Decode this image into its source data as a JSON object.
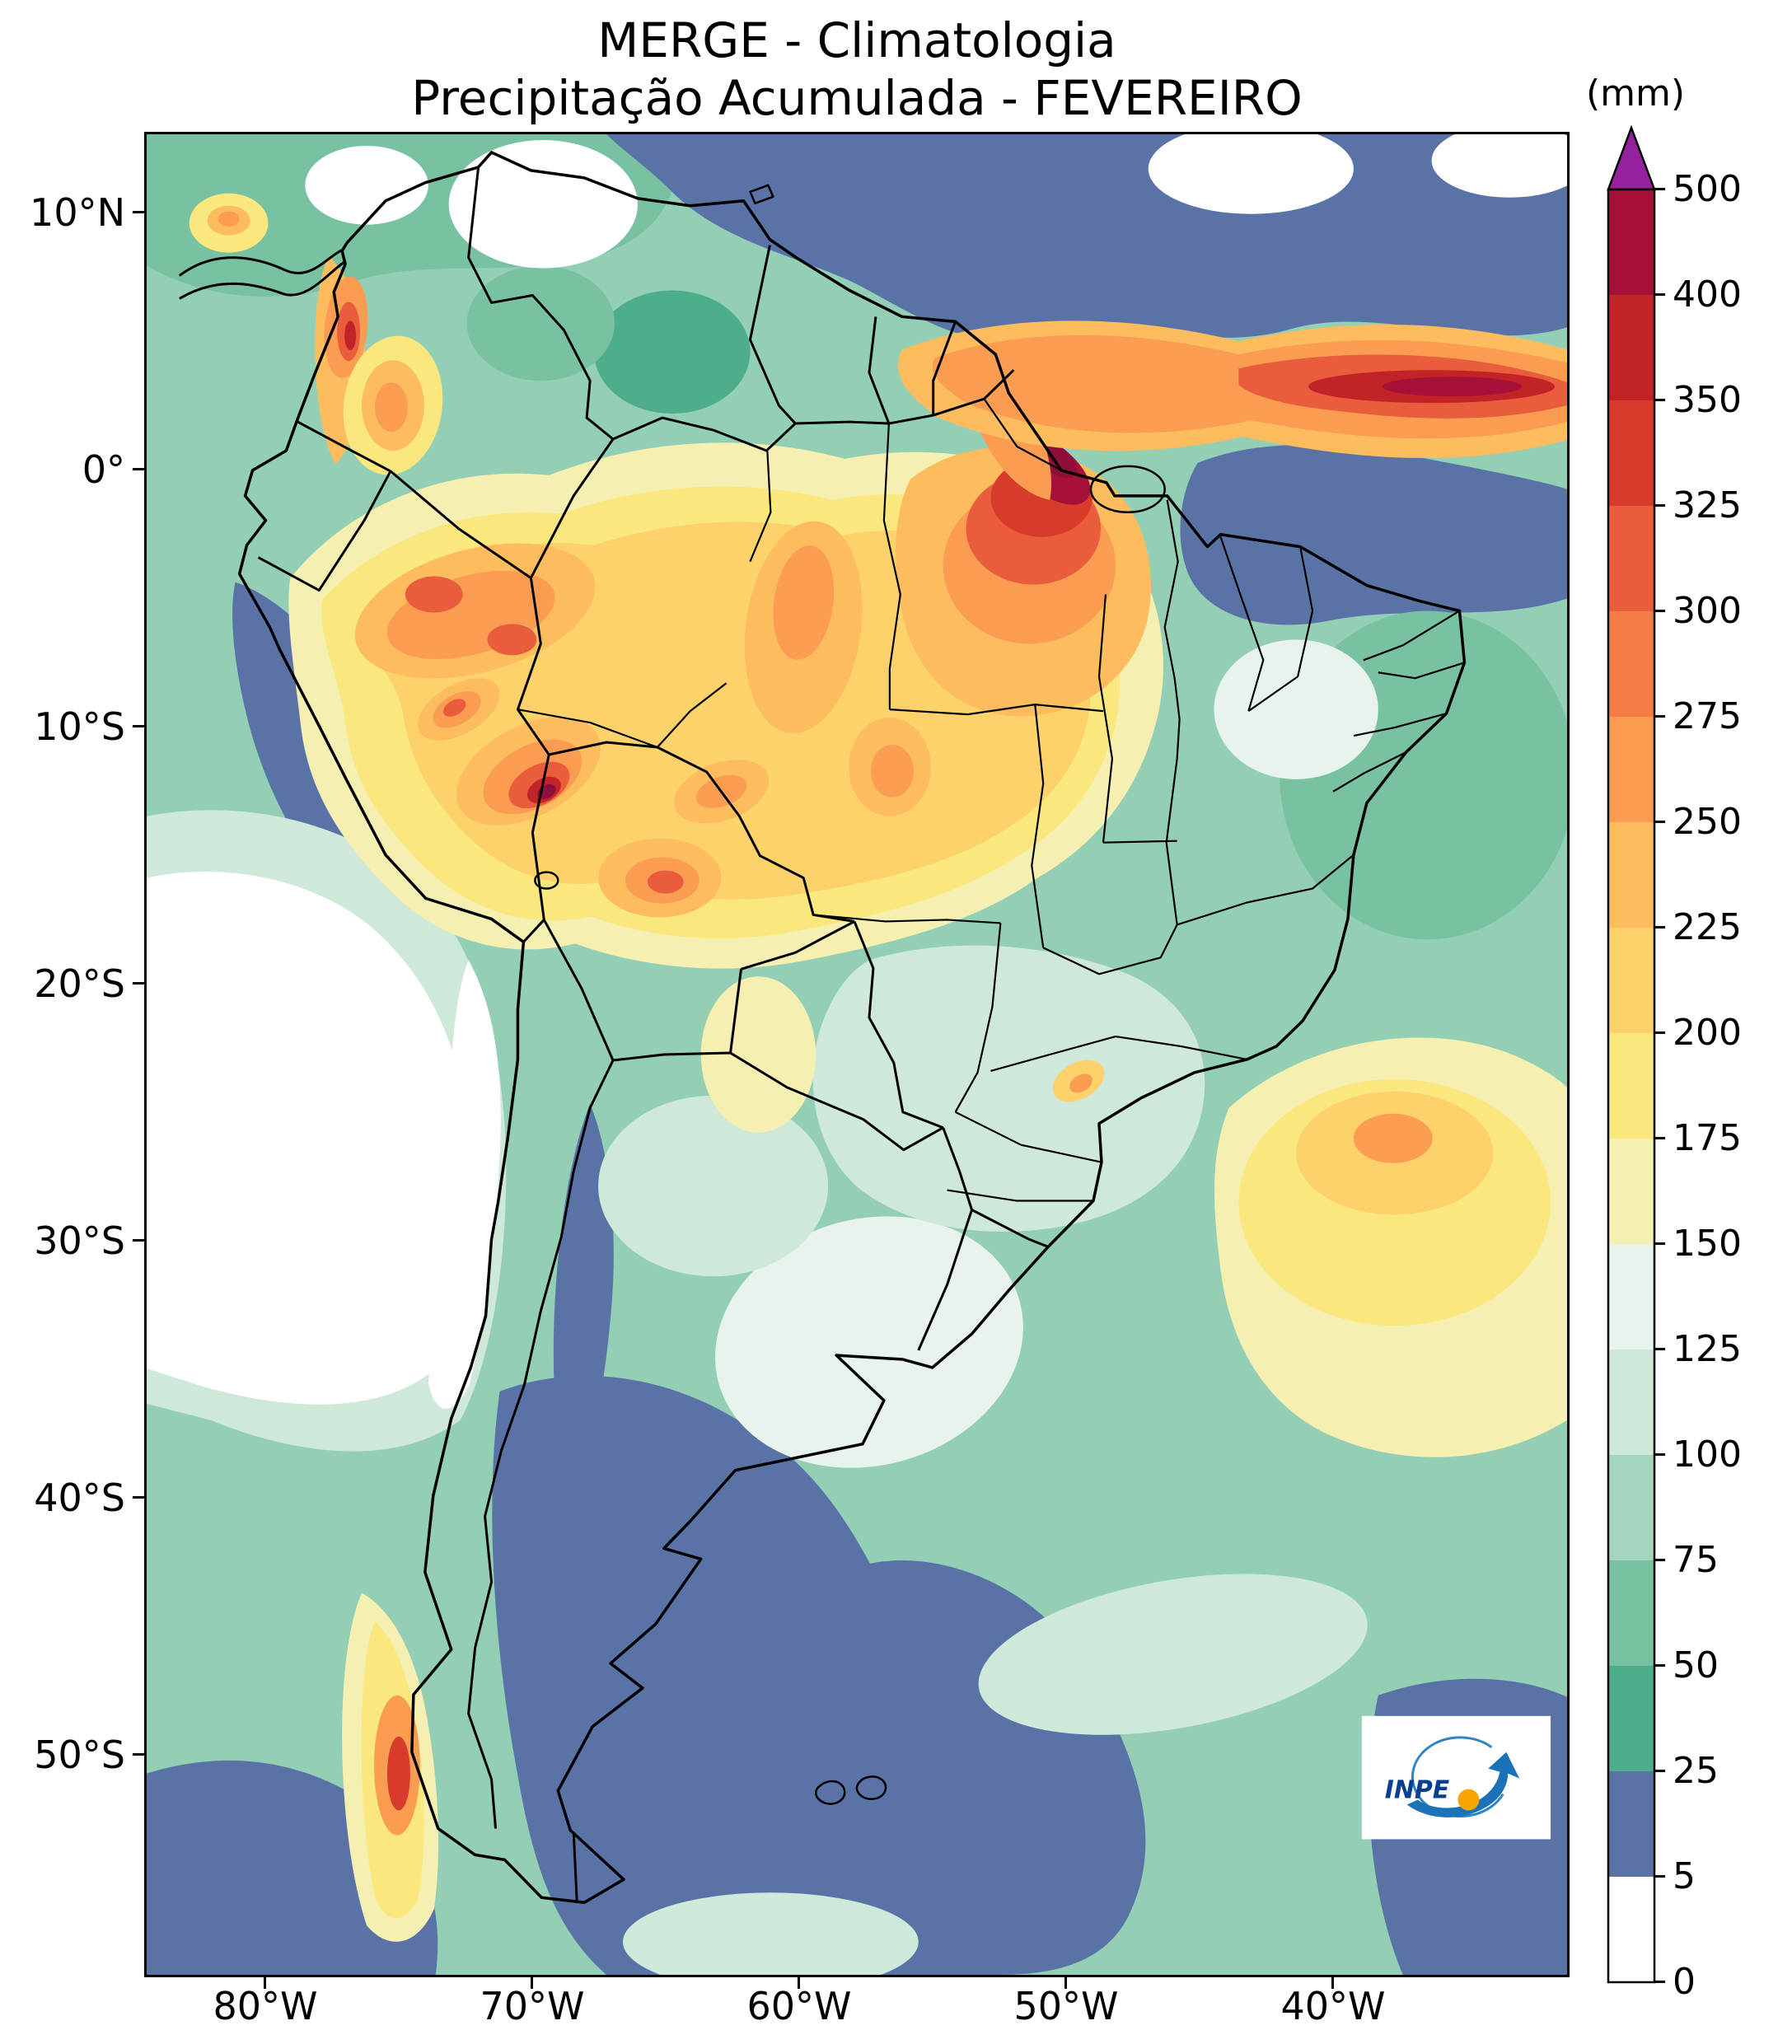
{
  "figure": {
    "title_line1": "MERGE - Climatologia",
    "title_line2": "Precipitação Acumulada - FEVEREIRO"
  },
  "axes": {
    "x_tick_labels": [
      "80°W",
      "70°W",
      "60°W",
      "50°W",
      "40°W"
    ],
    "y_tick_labels": [
      "10°N",
      "0°",
      "10°S",
      "20°S",
      "30°S",
      "40°S",
      "50°S"
    ]
  },
  "colorbar": {
    "unit_label": "(mm)",
    "tick_labels_top_to_bottom": [
      "500",
      "400",
      "350",
      "325",
      "300",
      "275",
      "250",
      "225",
      "200",
      "175",
      "150",
      "125",
      "100",
      "75",
      "50",
      "25",
      "5",
      "0"
    ],
    "segment_colors_top_to_bottom": [
      "#a51138",
      "#c22326",
      "#d93b2a",
      "#e95c3c",
      "#f47d45",
      "#fa9c51",
      "#fdbc5e",
      "#fdd26b",
      "#fae77e",
      "#f5efb2",
      "#e7f3ec",
      "#cee8da",
      "#a4d5be",
      "#78c1a1",
      "#4ead8b",
      "#5a73a7",
      "#ffffff"
    ],
    "extend_above_color": "#96219c"
  },
  "logo": {
    "text": "INPE"
  }
}
